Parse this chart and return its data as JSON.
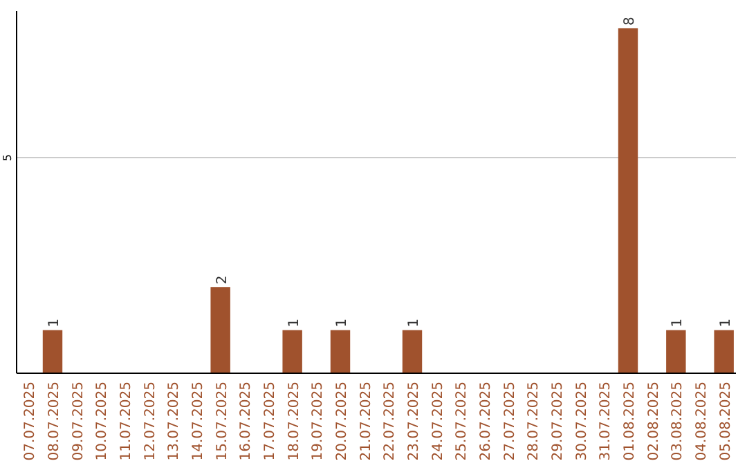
{
  "chart_data": {
    "type": "bar",
    "categories": [
      "07.07.2025",
      "08.07.2025",
      "09.07.2025",
      "10.07.2025",
      "11.07.2025",
      "12.07.2025",
      "13.07.2025",
      "14.07.2025",
      "15.07.2025",
      "16.07.2025",
      "17.07.2025",
      "18.07.2025",
      "19.07.2025",
      "20.07.2025",
      "21.07.2025",
      "22.07.2025",
      "23.07.2025",
      "24.07.2025",
      "25.07.2025",
      "26.07.2025",
      "27.07.2025",
      "28.07.2025",
      "29.07.2025",
      "30.07.2025",
      "31.07.2025",
      "01.08.2025",
      "02.08.2025",
      "03.08.2025",
      "04.08.2025",
      "05.08.2025"
    ],
    "values": [
      0,
      1,
      0,
      0,
      0,
      0,
      0,
      0,
      2,
      0,
      0,
      1,
      0,
      1,
      0,
      0,
      1,
      0,
      0,
      0,
      0,
      0,
      0,
      0,
      0,
      8,
      0,
      1,
      0,
      1
    ],
    "value_labels": [
      null,
      "1",
      null,
      null,
      null,
      null,
      null,
      null,
      "2",
      null,
      null,
      "1",
      null,
      "1",
      null,
      null,
      "1",
      null,
      null,
      null,
      null,
      null,
      null,
      null,
      null,
      "8",
      null,
      "1",
      null,
      "1"
    ],
    "color": "#a0522d",
    "ylim": [
      0,
      8.4
    ],
    "yticks": [
      5
    ],
    "grid": "y"
  }
}
